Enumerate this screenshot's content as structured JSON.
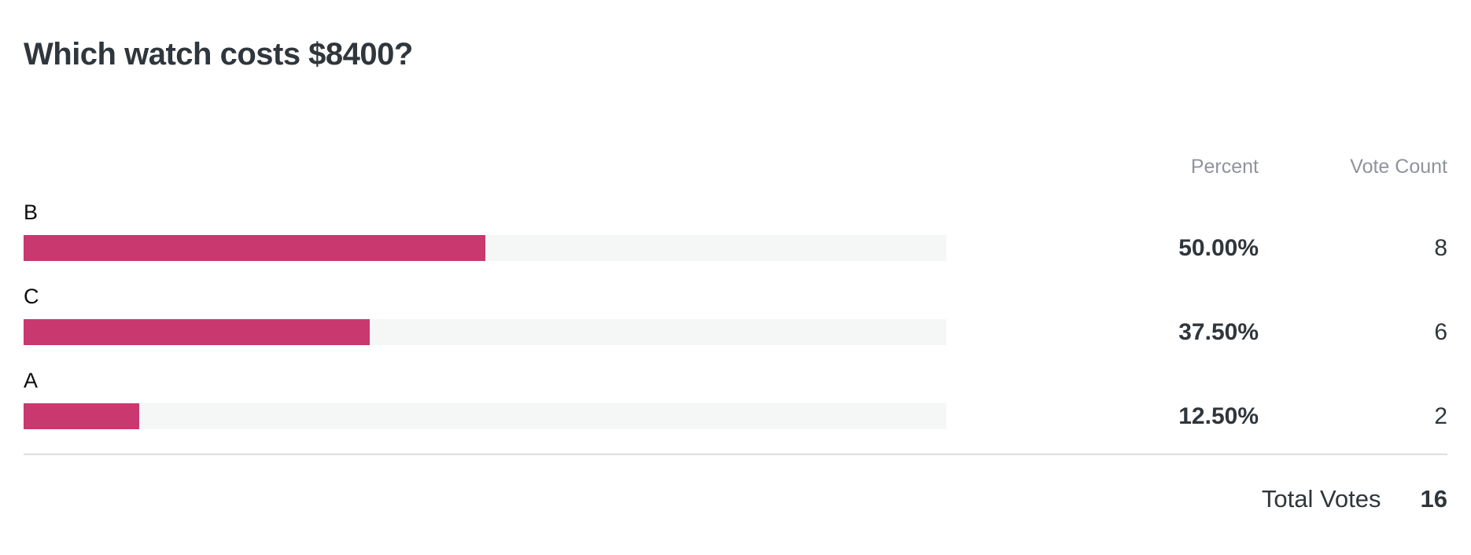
{
  "poll": {
    "title": "Which watch costs $8400?",
    "columns": {
      "percent": "Percent",
      "vote_count": "Vote Count"
    },
    "options": [
      {
        "label": "B",
        "percent_text": "50.00%",
        "percent_value": 50.0,
        "votes": "8"
      },
      {
        "label": "C",
        "percent_text": "37.50%",
        "percent_value": 37.5,
        "votes": "6"
      },
      {
        "label": "A",
        "percent_text": "12.50%",
        "percent_value": 12.5,
        "votes": "2"
      }
    ],
    "total": {
      "label": "Total Votes",
      "value": "16"
    },
    "colors": {
      "heading": "#2f363c",
      "muted_header": "#8f939c",
      "option_label": "#0b0d0e",
      "bar_fill": "#c9386e",
      "bar_track": "#f5f6f6",
      "divider": "#dcdddd",
      "background": "#ffffff"
    }
  },
  "chart_data": {
    "type": "bar",
    "orientation": "horizontal",
    "title": "Which watch costs $8400?",
    "categories": [
      "B",
      "C",
      "A"
    ],
    "series": [
      {
        "name": "Percent",
        "values": [
          50.0,
          37.5,
          12.5
        ]
      },
      {
        "name": "Vote Count",
        "values": [
          8,
          6,
          2
        ]
      }
    ],
    "value_labels": [
      "50.00%",
      "37.50%",
      "12.50%"
    ],
    "total_votes": 16,
    "xlim": [
      0,
      100
    ],
    "grid": false,
    "legend": false,
    "bar_color": "#c9386e",
    "track_color": "#f5f6f6"
  }
}
